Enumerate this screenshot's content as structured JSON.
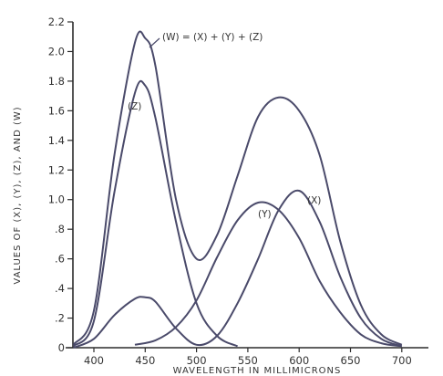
{
  "chart_data": {
    "type": "line",
    "xlabel": "WAVELENGTH IN MILLIMICRONS",
    "ylabel": "VALUES OF (X), (Y), (Z), AND (W)",
    "xlim": [
      380,
      700
    ],
    "ylim": [
      0,
      2.2
    ],
    "x_ticks": [
      400,
      450,
      500,
      550,
      600,
      650,
      700
    ],
    "x_tick_labels": [
      "400",
      "450",
      "500",
      "550",
      "600",
      "650",
      "700"
    ],
    "y_ticks": [
      0,
      0.2,
      0.4,
      0.6,
      0.8,
      1.0,
      1.2,
      1.4,
      1.6,
      1.8,
      2.0,
      2.2
    ],
    "y_tick_labels": [
      "0",
      ".2",
      ".4",
      ".6",
      ".8",
      "1.0",
      "1.2",
      "1.4",
      "1.6",
      "1.8",
      "2.0",
      "2.2"
    ],
    "grid": false,
    "series": [
      {
        "name": "(Z)",
        "x": [
          380,
          400,
          420,
          440,
          450,
          460,
          480,
          500,
          520,
          540
        ],
        "y": [
          0.01,
          0.18,
          1.05,
          1.72,
          1.77,
          1.55,
          0.85,
          0.3,
          0.08,
          0.01
        ]
      },
      {
        "name": "(Y)",
        "x": [
          440,
          460,
          480,
          500,
          520,
          540,
          560,
          580,
          600,
          620,
          640,
          660,
          680,
          700
        ],
        "y": [
          0.02,
          0.05,
          0.14,
          0.32,
          0.61,
          0.86,
          0.98,
          0.93,
          0.74,
          0.45,
          0.24,
          0.09,
          0.03,
          0.01
        ]
      },
      {
        "name": "(X)",
        "x": [
          380,
          400,
          420,
          440,
          450,
          460,
          480,
          500,
          520,
          540,
          560,
          580,
          600,
          620,
          640,
          660,
          680,
          700
        ],
        "y": [
          0.0,
          0.06,
          0.22,
          0.33,
          0.34,
          0.31,
          0.13,
          0.02,
          0.08,
          0.3,
          0.6,
          0.93,
          1.06,
          0.85,
          0.48,
          0.2,
          0.06,
          0.01
        ]
      },
      {
        "name": "(W) = (X) + (Y) + (Z)",
        "x": [
          380,
          400,
          420,
          440,
          450,
          460,
          480,
          500,
          520,
          540,
          560,
          580,
          600,
          620,
          640,
          660,
          680,
          700
        ],
        "y": [
          0.02,
          0.25,
          1.3,
          2.06,
          2.09,
          1.9,
          1.0,
          0.6,
          0.76,
          1.16,
          1.56,
          1.69,
          1.6,
          1.3,
          0.72,
          0.29,
          0.09,
          0.02
        ]
      }
    ]
  },
  "labels": {
    "curve_w": "(W) = (X) + (Y) + (Z)",
    "curve_z": "(Z)",
    "curve_y": "(Y)",
    "curve_x": "(X)"
  }
}
